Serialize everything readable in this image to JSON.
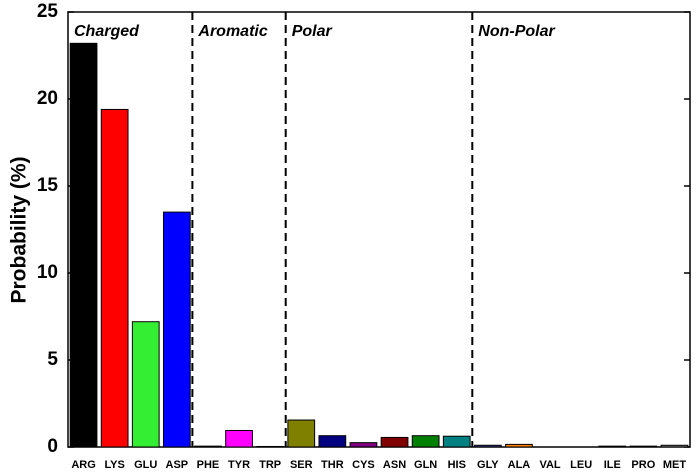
{
  "chart_data": {
    "type": "bar",
    "ylabel": "Probability (%)",
    "categories": [
      "ARG",
      "LYS",
      "GLU",
      "ASP",
      "PHE",
      "TYR",
      "TRP",
      "SER",
      "THR",
      "CYS",
      "ASN",
      "GLN",
      "HIS",
      "GLY",
      "ALA",
      "VAL",
      "LEU",
      "ILE",
      "PRO",
      "MET"
    ],
    "values": [
      23.2,
      19.4,
      7.2,
      13.5,
      0.05,
      0.95,
      0.03,
      1.55,
      0.65,
      0.25,
      0.55,
      0.65,
      0.62,
      0.1,
      0.15,
      0,
      0,
      0.05,
      0.05,
      0.1
    ],
    "colors": [
      "#000000",
      "#ff0000",
      "#33ee33",
      "#0000ff",
      "#00cccc",
      "#ff00ff",
      "#cccc00",
      "#808000",
      "#000080",
      "#800080",
      "#800000",
      "#008000",
      "#008080",
      "#3d3d8f",
      "#ff8000",
      "#8080c0",
      "#c08080",
      "#404040",
      "#606060",
      "#808080"
    ],
    "groups": [
      {
        "name": "Charged",
        "size": 4
      },
      {
        "name": "Aromatic",
        "size": 3
      },
      {
        "name": "Polar",
        "size": 6
      },
      {
        "name": "Non-Polar",
        "size": 7
      }
    ],
    "ylim": [
      0,
      25
    ],
    "yticks": [
      0,
      5,
      10,
      15,
      20,
      25
    ]
  }
}
